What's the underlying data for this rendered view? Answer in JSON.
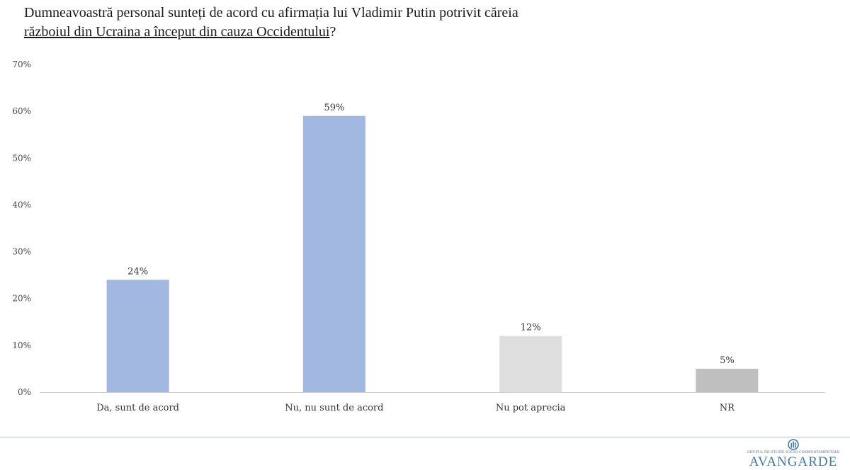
{
  "title": {
    "part1": "Dumneavoastră personal sunteți de acord cu afirmația lui Vladimir Putin potrivit căreia ",
    "underlined": "războiul din Ucraina a început din cauza Occidentului",
    "part2": "?"
  },
  "chart_data": {
    "type": "bar",
    "title": "Dumneavoastră personal sunteți de acord cu afirmația lui Vladimir Putin potrivit căreia războiul din Ucraina a început din cauza Occidentului?",
    "categories": [
      "Da, sunt de acord",
      "Nu, nu sunt de acord",
      "Nu pot aprecia",
      "NR"
    ],
    "values": [
      24,
      59,
      12,
      5
    ],
    "data_labels": [
      "24%",
      "59%",
      "12%",
      "5%"
    ],
    "colors": [
      "#a2b8e0",
      "#a2b8e0",
      "#dedede",
      "#bfbfbf"
    ],
    "ylim": [
      0,
      70
    ],
    "yticks": [
      "0%",
      "10%",
      "20%",
      "30%",
      "40%",
      "50%",
      "60%",
      "70%"
    ],
    "xlabel": "",
    "ylabel": "",
    "grid": false,
    "legend": "none"
  },
  "logo": {
    "subtitle": "GRUPUL DE STUDII SOCIO-COMPORTAMENTALE",
    "name": "AVANGARDE"
  }
}
